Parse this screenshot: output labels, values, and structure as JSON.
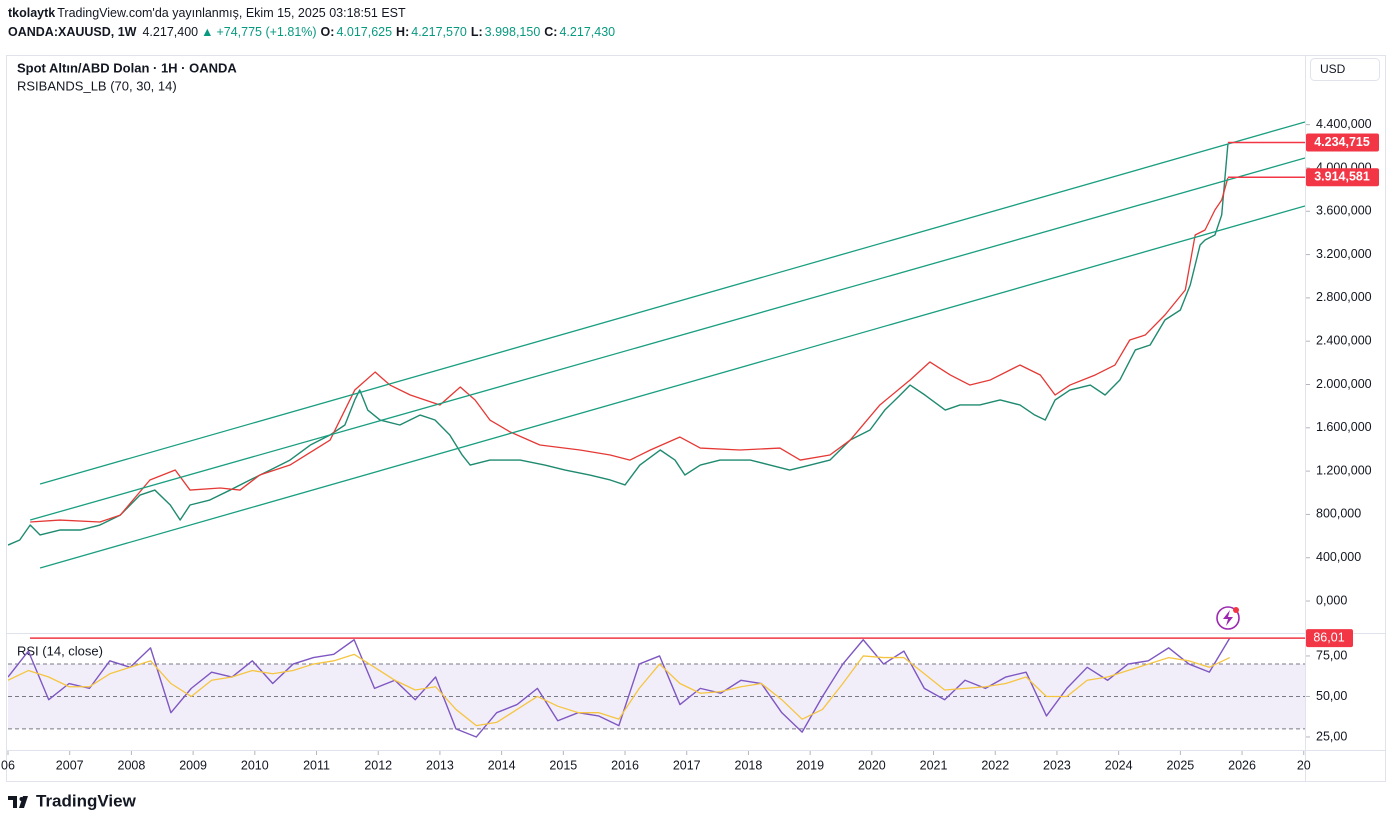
{
  "header": {
    "author": "tkolaytk",
    "published": "TradingView.com'da yayınlanmış, Ekim 15, 2025 03:18:51 EST",
    "symbol": "OANDA:XAUUSD, 1W",
    "last": "4.217,400",
    "arrow": "▲",
    "change": "+74,775 (+1.81%)",
    "open_label": "O:",
    "open": "4.017,625",
    "high_label": "H:",
    "high": "4.217,570",
    "low_label": "L:",
    "low": "3.998,150",
    "close_label": "C:",
    "close": "4.217,430"
  },
  "chart_data": [
    {
      "type": "line",
      "title": "Spot Altın/ABD Dolan · 1H · OANDA",
      "subtitle": "RSIBANDS_LB (70, 30, 14)",
      "currency": "USD",
      "xlim": [
        2006,
        2027.02
      ],
      "xticks": [
        {
          "value": 2006,
          "label": "06"
        },
        2007,
        2008,
        2009,
        2010,
        2011,
        2012,
        2013,
        2014,
        2015,
        2016,
        2017,
        2018,
        2019,
        2020,
        2021,
        2022,
        2023,
        2024,
        2025,
        2026,
        {
          "value": 2027,
          "label": "20"
        }
      ],
      "ylim": [
        -286,
        5025
      ],
      "yticks": [
        {
          "value": 0,
          "label": "0,000"
        },
        {
          "value": 400,
          "label": "400,000"
        },
        {
          "value": 800,
          "label": "800,000"
        },
        {
          "value": 1200,
          "label": "1.200,000"
        },
        {
          "value": 1600,
          "label": "1.600,000"
        },
        {
          "value": 2000,
          "label": "2.000,000"
        },
        {
          "value": 2400,
          "label": "2.400,000"
        },
        {
          "value": 2800,
          "label": "2.800,000"
        },
        {
          "value": 3200,
          "label": "3.200,000"
        },
        {
          "value": 3600,
          "label": "3.600,000"
        },
        {
          "value": 4000,
          "label": "4.000,000"
        },
        {
          "value": 4400,
          "label": "4.400,000"
        }
      ],
      "grid": false,
      "series": [
        {
          "color": "#1f8a70",
          "x": [
            2006.0,
            2006.19,
            2006.36,
            2006.52,
            2006.84,
            2007.17,
            2007.49,
            2007.82,
            2008.14,
            2008.38,
            2008.63,
            2008.79,
            2008.95,
            2009.27,
            2009.6,
            2009.92,
            2010.25,
            2010.57,
            2010.9,
            2011.22,
            2011.46,
            2011.62,
            2011.7,
            2011.83,
            2012.03,
            2012.35,
            2012.68,
            2012.92,
            2013.16,
            2013.36,
            2013.49,
            2013.81,
            2014.3,
            2014.7,
            2015.03,
            2015.43,
            2015.76,
            2016.0,
            2016.24,
            2016.57,
            2016.81,
            2016.97,
            2017.22,
            2017.54,
            2018.03,
            2018.35,
            2018.67,
            2019.0,
            2019.32,
            2019.65,
            2019.97,
            2020.21,
            2020.46,
            2020.62,
            2020.86,
            2021.19,
            2021.43,
            2021.75,
            2022.08,
            2022.4,
            2022.64,
            2022.81,
            2022.97,
            2023.21,
            2023.54,
            2023.78,
            2024.02,
            2024.27,
            2024.51,
            2024.75,
            2025.0,
            2025.16,
            2025.32,
            2025.4,
            2025.56,
            2025.67,
            2025.77
          ],
          "values": [
            517,
            564,
            702,
            610,
            656,
            656,
            702,
            794,
            979,
            1025,
            887,
            748,
            887,
            933,
            1025,
            1118,
            1210,
            1302,
            1441,
            1534,
            1626,
            1857,
            1949,
            1764,
            1672,
            1626,
            1718,
            1672,
            1534,
            1349,
            1256,
            1302,
            1302,
            1256,
            1210,
            1164,
            1118,
            1072,
            1256,
            1395,
            1302,
            1164,
            1256,
            1302,
            1302,
            1256,
            1210,
            1256,
            1302,
            1487,
            1580,
            1764,
            1903,
            1995,
            1903,
            1764,
            1811,
            1811,
            1857,
            1811,
            1718,
            1672,
            1857,
            1949,
            1995,
            1903,
            2042,
            2319,
            2365,
            2596,
            2688,
            2919,
            3289,
            3335,
            3381,
            3566,
            4217
          ]
        },
        {
          "color": "#e53935",
          "x": [
            2006.36,
            2006.84,
            2007.49,
            2007.82,
            2008.3,
            2008.71,
            2008.95,
            2009.44,
            2009.76,
            2010.08,
            2010.57,
            2011.22,
            2011.62,
            2011.95,
            2012.19,
            2012.52,
            2013.0,
            2013.33,
            2013.57,
            2013.81,
            2014.14,
            2014.62,
            2015.27,
            2015.76,
            2016.08,
            2016.41,
            2016.89,
            2017.22,
            2017.86,
            2018.51,
            2018.84,
            2019.32,
            2019.65,
            2020.13,
            2020.62,
            2020.94,
            2021.27,
            2021.59,
            2021.92,
            2022.24,
            2022.4,
            2022.73,
            2022.97,
            2023.21,
            2023.62,
            2023.94,
            2024.18,
            2024.43,
            2024.75,
            2025.08,
            2025.24,
            2025.4,
            2025.56,
            2025.67,
            2025.77
          ],
          "values": [
            730,
            748,
            730,
            794,
            1118,
            1210,
            1025,
            1044,
            1025,
            1164,
            1256,
            1487,
            1949,
            2115,
            1995,
            1903,
            1811,
            1977,
            1857,
            1672,
            1561,
            1441,
            1395,
            1349,
            1302,
            1395,
            1515,
            1413,
            1395,
            1413,
            1302,
            1349,
            1487,
            1811,
            2042,
            2208,
            2088,
            1995,
            2042,
            2134,
            2180,
            2088,
            1903,
            1995,
            2088,
            2180,
            2411,
            2457,
            2642,
            2873,
            3381,
            3427,
            3612,
            3704,
            3908
          ]
        },
        {
          "color": "#1a9e80",
          "x": [
            2006.52,
            2027.02
          ],
          "values": [
            1081,
            4425
          ]
        },
        {
          "color": "#1a9e80",
          "x": [
            2006.36,
            2027.02
          ],
          "values": [
            748,
            4092
          ]
        },
        {
          "color": "#1a9e80",
          "x": [
            2006.52,
            2027.02
          ],
          "values": [
            305,
            3649
          ]
        }
      ],
      "price_labels": [
        {
          "value": 4234.715,
          "label": "4.234,715"
        },
        {
          "value": 3914.581,
          "label": "3.914,581"
        }
      ],
      "label_color": "#f23645"
    },
    {
      "type": "line",
      "title": "RSI (14, close)",
      "ylim": [
        18.2,
        86.7
      ],
      "yticks": [
        {
          "value": 25,
          "label": "25,00"
        },
        {
          "value": 50,
          "label": "50,00"
        },
        {
          "value": 75,
          "label": "75,00"
        }
      ],
      "levels": [
        70,
        50,
        30
      ],
      "band_color": "#7e57c2",
      "series": [
        {
          "color": "#7e57c2",
          "x": [
            2006.0,
            2006.33,
            2006.66,
            2006.99,
            2007.32,
            2007.65,
            2007.98,
            2008.31,
            2008.64,
            2008.97,
            2009.3,
            2009.63,
            2009.96,
            2010.29,
            2010.62,
            2010.95,
            2011.28,
            2011.61,
            2011.94,
            2012.27,
            2012.6,
            2012.93,
            2013.26,
            2013.59,
            2013.92,
            2014.25,
            2014.58,
            2014.91,
            2015.24,
            2015.57,
            2015.9,
            2016.23,
            2016.56,
            2016.89,
            2017.22,
            2017.55,
            2017.88,
            2018.21,
            2018.54,
            2018.87,
            2019.2,
            2019.53,
            2019.86,
            2020.19,
            2020.52,
            2020.85,
            2021.18,
            2021.51,
            2021.84,
            2022.17,
            2022.5,
            2022.83,
            2023.16,
            2023.49,
            2023.82,
            2024.15,
            2024.48,
            2024.81,
            2025.14,
            2025.47,
            2025.8
          ],
          "values": [
            62,
            78,
            48,
            58,
            55,
            72,
            68,
            80,
            40,
            55,
            65,
            62,
            72,
            58,
            70,
            74,
            76,
            85,
            55,
            60,
            48,
            62,
            30,
            25,
            40,
            45,
            55,
            35,
            40,
            38,
            32,
            70,
            75,
            45,
            55,
            52,
            60,
            58,
            40,
            28,
            50,
            70,
            85,
            70,
            78,
            55,
            48,
            60,
            55,
            62,
            65,
            38,
            55,
            68,
            60,
            70,
            72,
            80,
            70,
            65,
            86.01
          ],
          "value_labels": [
            null,
            null,
            null,
            null,
            null,
            null,
            null,
            null,
            null,
            null,
            null,
            null,
            null,
            null,
            null,
            null,
            null,
            null,
            null,
            null,
            null,
            null,
            null,
            null,
            null,
            null,
            null,
            null,
            null,
            null,
            null,
            null,
            null,
            null,
            null,
            null,
            null,
            null,
            null,
            null,
            null,
            null,
            null,
            null,
            null,
            null,
            null,
            null,
            null,
            null,
            null,
            null,
            null,
            null,
            null,
            null,
            null,
            null,
            null,
            null,
            "86,01"
          ]
        },
        {
          "color": "#f5c542",
          "x": [
            2006.0,
            2006.33,
            2006.66,
            2006.99,
            2007.32,
            2007.65,
            2007.98,
            2008.31,
            2008.64,
            2008.97,
            2009.3,
            2009.63,
            2009.96,
            2010.29,
            2010.62,
            2010.95,
            2011.28,
            2011.61,
            2011.94,
            2012.27,
            2012.6,
            2012.93,
            2013.26,
            2013.59,
            2013.92,
            2014.25,
            2014.58,
            2014.91,
            2015.24,
            2015.57,
            2015.9,
            2016.23,
            2016.56,
            2016.89,
            2017.22,
            2017.55,
            2017.88,
            2018.21,
            2018.54,
            2018.87,
            2019.2,
            2019.53,
            2019.86,
            2020.19,
            2020.52,
            2020.85,
            2021.18,
            2021.51,
            2021.84,
            2022.17,
            2022.5,
            2022.83,
            2023.16,
            2023.49,
            2023.82,
            2024.15,
            2024.48,
            2024.81,
            2025.14,
            2025.47,
            2025.8
          ],
          "values": [
            60,
            66,
            62,
            56,
            56,
            64,
            68,
            72,
            58,
            50,
            60,
            62,
            66,
            64,
            66,
            70,
            72,
            76,
            68,
            60,
            54,
            56,
            42,
            32,
            34,
            42,
            50,
            44,
            40,
            40,
            36,
            55,
            70,
            58,
            52,
            53,
            56,
            58,
            48,
            36,
            42,
            58,
            75,
            74,
            74,
            64,
            54,
            55,
            56,
            58,
            62,
            50,
            50,
            60,
            62,
            66,
            70,
            74,
            72,
            68,
            74
          ]
        }
      ],
      "label_color": "#f23645"
    }
  ],
  "footer": {
    "brand": "TradingView"
  }
}
